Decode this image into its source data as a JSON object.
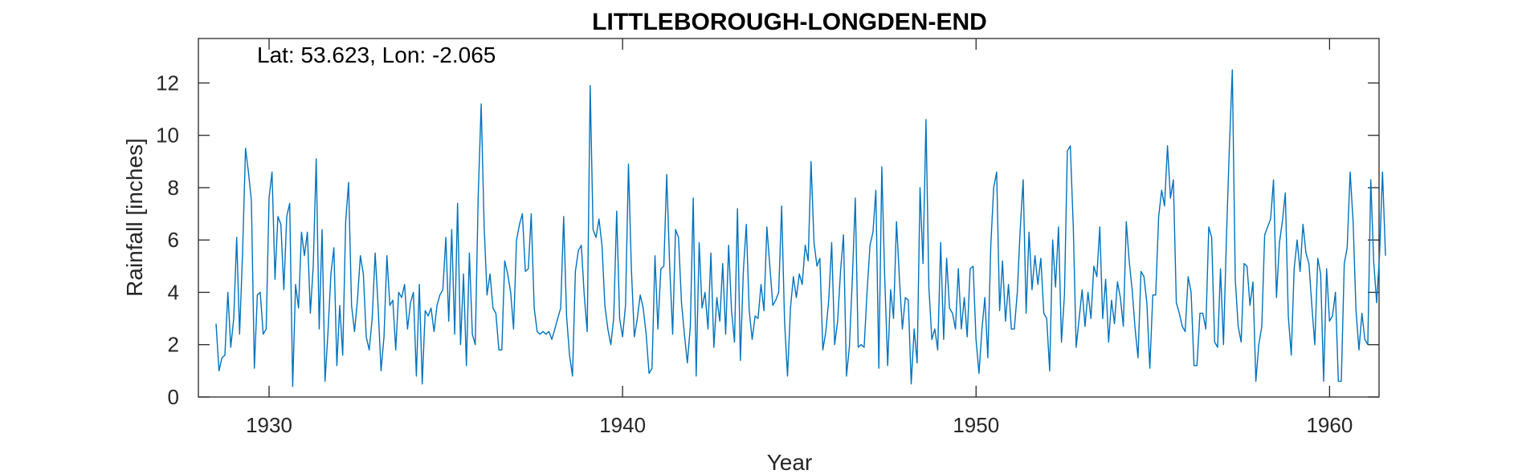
{
  "chart_data": {
    "type": "line",
    "title": "LITTLEBOROUGH-LONGDEN-END",
    "annotation": "Lat: 53.623, Lon: -2.065",
    "xlabel": "Year",
    "ylabel": "Rainfall [inches]",
    "xlim": [
      1928.0,
      1961.4
    ],
    "ylim": [
      0,
      13.7
    ],
    "x_ticks": [
      1930,
      1940,
      1950,
      1960
    ],
    "y_ticks": [
      0,
      2,
      4,
      6,
      8,
      10,
      12
    ],
    "grid": false,
    "line_color": "#0072BD",
    "series": [
      {
        "x_start": 1928.5,
        "x_step": 0.08333,
        "values": [
          2.8,
          1.0,
          1.5,
          1.6,
          4.0,
          1.9,
          3.0,
          6.1,
          2.4,
          5.5,
          9.5,
          8.6,
          7.5,
          1.1,
          3.9,
          4.0,
          2.4,
          2.6,
          7.6,
          8.6,
          4.5,
          6.9,
          6.6,
          4.1,
          6.9,
          7.4,
          0.4,
          4.3,
          3.4,
          6.3,
          5.4,
          6.3,
          3.2,
          5.0,
          9.1,
          2.6,
          6.4,
          0.6,
          2.5,
          4.7,
          5.7,
          1.2,
          3.5,
          1.6,
          6.7,
          8.2,
          3.5,
          2.5,
          3.7,
          5.4,
          4.7,
          2.3,
          1.8,
          3.0,
          5.5,
          3.5,
          1.0,
          2.3,
          5.4,
          3.5,
          3.7,
          1.8,
          4.0,
          3.8,
          4.3,
          2.6,
          3.6,
          4.0,
          0.8,
          4.3,
          0.5,
          3.3,
          3.1,
          3.4,
          2.5,
          3.5,
          3.9,
          4.1,
          6.1,
          2.9,
          6.4,
          2.4,
          7.4,
          2.0,
          4.7,
          1.2,
          5.5,
          2.4,
          2.0,
          7.7,
          11.2,
          6.5,
          3.9,
          4.7,
          3.4,
          3.2,
          1.8,
          1.8,
          5.2,
          4.7,
          4.0,
          2.6,
          6.0,
          6.6,
          7.0,
          4.8,
          4.9,
          7.0,
          3.4,
          2.5,
          2.4,
          2.5,
          2.4,
          2.5,
          2.2,
          2.6,
          3.0,
          3.4,
          6.9,
          3.1,
          1.6,
          0.8,
          4.8,
          5.6,
          5.8,
          3.9,
          2.5,
          11.9,
          6.4,
          6.1,
          6.8,
          5.8,
          3.5,
          2.6,
          2.0,
          3.0,
          7.1,
          3.0,
          2.3,
          3.5,
          8.9,
          4.9,
          2.3,
          3.0,
          3.9,
          3.4,
          2.4,
          0.9,
          1.1,
          5.4,
          2.6,
          4.9,
          5.0,
          8.5,
          5.0,
          2.4,
          6.4,
          6.1,
          3.6,
          2.4,
          1.3,
          2.7,
          7.6,
          0.8,
          5.9,
          3.4,
          4.0,
          2.6,
          5.5,
          1.9,
          3.8,
          2.9,
          5.1,
          2.4,
          5.8,
          3.3,
          2.1,
          7.2,
          1.4,
          4.8,
          6.6,
          3.3,
          2.2,
          3.1,
          3.0,
          4.3,
          3.3,
          6.5,
          5.0,
          3.5,
          3.7,
          4.0,
          7.3,
          2.9,
          0.8,
          3.4,
          4.6,
          3.8,
          4.7,
          4.3,
          5.8,
          5.2,
          9.0,
          5.9,
          5.0,
          5.3,
          1.8,
          2.5,
          3.7,
          5.9,
          2.0,
          2.9,
          4.8,
          6.2,
          0.8,
          1.9,
          4.5,
          7.6,
          1.9,
          2.0,
          1.9,
          4.0,
          5.8,
          6.3,
          7.9,
          1.1,
          8.8,
          4.6,
          1.2,
          4.1,
          3.0,
          6.7,
          4.5,
          2.6,
          3.8,
          3.7,
          0.5,
          2.6,
          1.3,
          8.0,
          5.1,
          10.6,
          4.2,
          2.2,
          2.6,
          1.8,
          5.9,
          2.2,
          5.3,
          3.4,
          3.2,
          2.6,
          4.9,
          2.6,
          3.8,
          2.3,
          4.9,
          5.0,
          2.2,
          0.9,
          2.6,
          3.8,
          1.5,
          5.8,
          8.0,
          8.6,
          3.3,
          5.2,
          2.9,
          4.3,
          2.6,
          2.6,
          4.0,
          6.4,
          8.3,
          3.2,
          6.3,
          4.1,
          5.4,
          4.3,
          5.3,
          3.2,
          3.0,
          1.0,
          6.0,
          4.2,
          6.5,
          2.1,
          3.9,
          9.4,
          9.6,
          6.5,
          1.9,
          3.0,
          4.1,
          2.7,
          4.0,
          3.0,
          5.0,
          4.6,
          6.5,
          3.0,
          4.5,
          2.1,
          3.7,
          2.8,
          4.4,
          3.8,
          2.7,
          6.7,
          5.2,
          4.1,
          2.6,
          1.5,
          4.8,
          4.6,
          3.6,
          1.1,
          3.9,
          3.9,
          6.9,
          7.9,
          7.3,
          9.6,
          7.6,
          8.3,
          3.6,
          3.2,
          2.7,
          2.5,
          4.6,
          4.0,
          1.2,
          1.2,
          3.2,
          3.2,
          2.6,
          6.5,
          6.1,
          2.1,
          1.9,
          4.9,
          2.0,
          6.1,
          9.5,
          12.5,
          4.5,
          2.7,
          2.1,
          5.1,
          5.0,
          3.5,
          4.4,
          0.6,
          2.0,
          2.7,
          6.2,
          6.5,
          6.8,
          8.3,
          3.8,
          5.9,
          6.7,
          7.8,
          3.1,
          1.6,
          4.9,
          6.0,
          4.8,
          6.6,
          5.5,
          5.1,
          3.5,
          2.0,
          5.3,
          4.7,
          0.6,
          4.9,
          2.9,
          3.1,
          4.0,
          0.6,
          0.6,
          5.1,
          5.7,
          8.6,
          6.7,
          3.3,
          1.8,
          3.2,
          2.2,
          2.0,
          8.3,
          5.2,
          3.6,
          5.5,
          8.6,
          5.4
        ]
      }
    ]
  }
}
